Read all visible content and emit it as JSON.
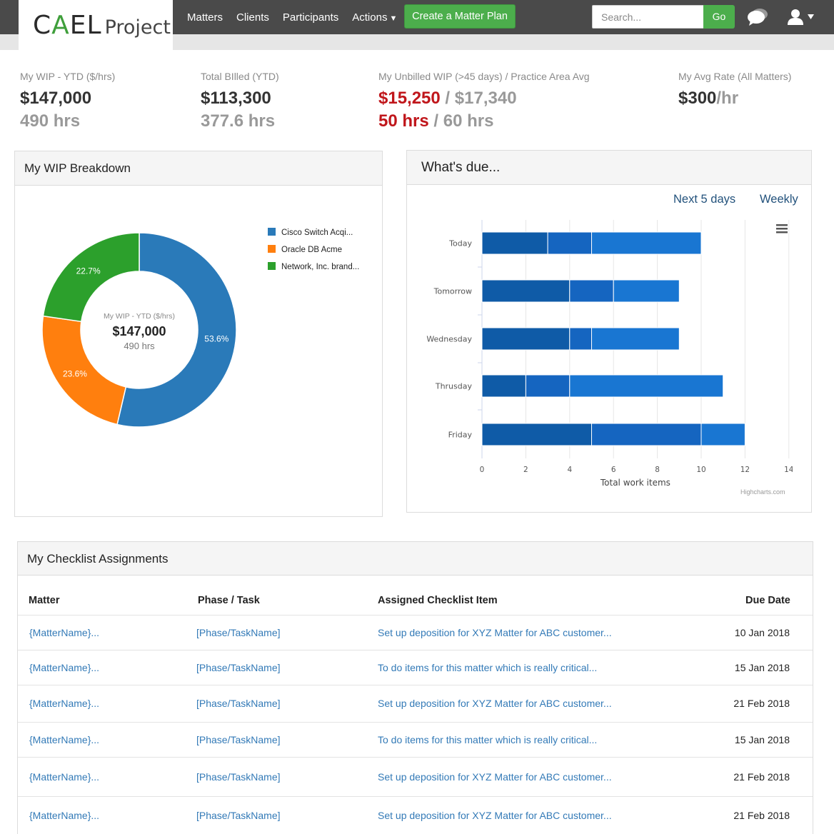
{
  "app": {
    "logo_main": "CAEL",
    "logo_sub": "Project"
  },
  "nav": {
    "items": [
      "Matters",
      "Clients",
      "Participants"
    ],
    "actions_label": "Actions",
    "create_label": "Create a Matter Plan",
    "search_placeholder": "Search...",
    "go_label": "Go"
  },
  "kpis": {
    "wip": {
      "label": "My WIP - YTD ($/hrs)",
      "amount": "$147,000",
      "hours": "490 hrs"
    },
    "billed": {
      "label": "Total BIlled (YTD)",
      "amount": "$113,300",
      "hours": "377.6 hrs"
    },
    "unbilled": {
      "label": "My Unbilled WIP (>45 days) / Practice Area Avg",
      "amount_mine": "$15,250",
      "amount_sep": " / ",
      "amount_avg": "$17,340",
      "hours_mine": "50 hrs",
      "hours_sep": " / ",
      "hours_avg": "60 hrs"
    },
    "rate": {
      "label": "My Avg Rate (All Matters)",
      "amount": "$300",
      "unit": "/hr"
    }
  },
  "wip_panel": {
    "title": "My WIP Breakdown",
    "center_label": "My WIP - YTD ($/hrs)",
    "center_amount": "$147,000",
    "center_hours": "490 hrs"
  },
  "due_panel": {
    "title": "What's due...",
    "tab_next": "Next 5 days",
    "tab_weekly": "Weekly",
    "credit": "Highcharts.com"
  },
  "chart_data": [
    {
      "type": "pie",
      "title": "",
      "categories": [
        "Cisco Switch Acqi...",
        "Oracle DB Acme",
        "Network, Inc. brand..."
      ],
      "values": [
        53.6,
        23.6,
        22.7
      ],
      "labels": [
        "53.6%",
        "23.6%",
        "22.7%"
      ],
      "colors": [
        "#2a7ab9",
        "#ff7f0e",
        "#2ca02c"
      ],
      "donut": true,
      "legend": "right"
    },
    {
      "type": "bar",
      "orientation": "horizontal",
      "stacked": true,
      "title": "",
      "categories": [
        "Today",
        "Tomorrow",
        "Wednesday",
        "Thrusday",
        "Friday"
      ],
      "series": [
        {
          "values": [
            3,
            4,
            4,
            2,
            5
          ],
          "color": "#0f5ba7"
        },
        {
          "values": [
            2,
            2,
            1,
            2,
            5
          ],
          "color": "#1565c0"
        },
        {
          "values": [
            5,
            3,
            4,
            7,
            2
          ],
          "color": "#1976d2"
        }
      ],
      "xlabel": "Total work items",
      "ylabel": "",
      "xlim": [
        0,
        14
      ],
      "xticks": [
        0,
        2,
        4,
        6,
        8,
        10,
        12,
        14
      ],
      "grid": true
    }
  ],
  "checklist": {
    "title": "My Checklist Assignments",
    "headers": [
      "Matter",
      "Phase / Task",
      "Assigned Checklist Item",
      "Due Date"
    ],
    "rows": [
      {
        "matter": "{MatterName}...",
        "phase": "[Phase/TaskName]",
        "item": "Set up deposition for XYZ Matter for ABC customer...",
        "due": "10 Jan 2018"
      },
      {
        "matter": "{MatterName}...",
        "phase": "[Phase/TaskName]",
        "item": "To do items for this matter which is really critical...",
        "due": "15 Jan 2018"
      },
      {
        "matter": "{MatterName}...",
        "phase": "[Phase/TaskName]",
        "item": "Set up deposition for XYZ Matter for ABC customer...",
        "due": "21 Feb 2018"
      },
      {
        "matter": "{MatterName}...",
        "phase": "[Phase/TaskName]",
        "item": "To do items for this matter which is really critical...",
        "due": "15 Jan 2018"
      },
      {
        "matter": "{MatterName}...",
        "phase": "[Phase/TaskName]",
        "item": "Set up deposition for XYZ Matter for ABC customer...",
        "due": "21 Feb 2018"
      },
      {
        "matter": "{MatterName}...",
        "phase": "[Phase/TaskName]",
        "item": "Set up deposition for XYZ Matter for ABC customer...",
        "due": "21 Feb 2018"
      }
    ]
  }
}
